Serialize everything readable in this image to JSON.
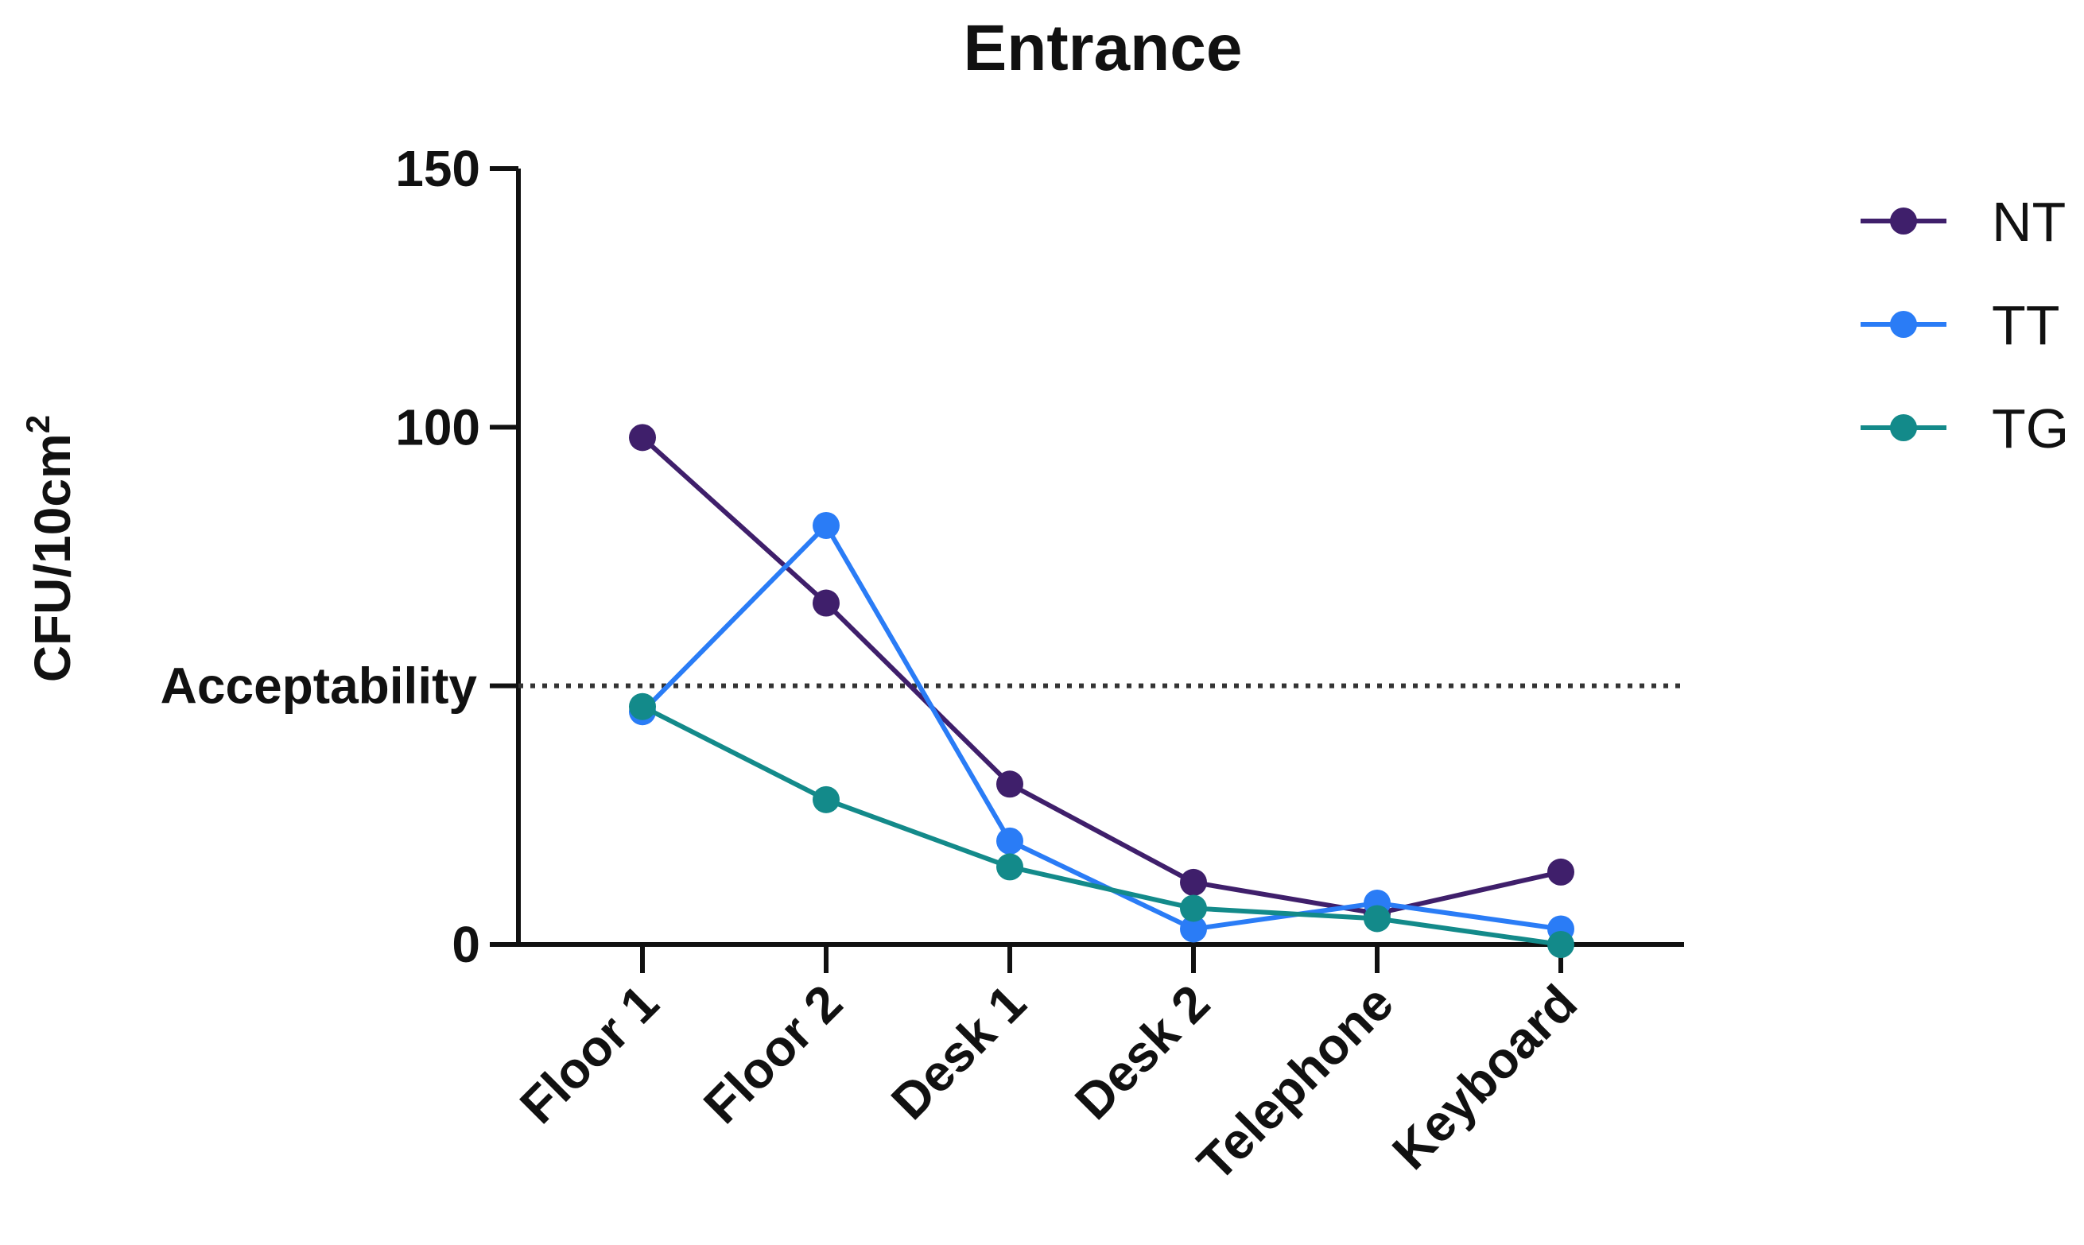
{
  "chart_data": {
    "type": "line",
    "title": "Entrance",
    "xlabel": "",
    "ylabel": "CFU/10cm",
    "ylabel_superscript": "2",
    "categories": [
      "Floor 1",
      "Floor 2",
      "Desk 1",
      "Desk 2",
      "Telephone",
      "Keyboard"
    ],
    "ylim": [
      0,
      150
    ],
    "yticks": [
      0,
      100,
      150
    ],
    "reference_line": {
      "value": 50,
      "label": "Acceptability",
      "style": "dotted"
    },
    "grid": false,
    "legend_position": "top-right",
    "series": [
      {
        "name": "NT",
        "color": "#3f1f6b",
        "values": [
          98,
          66,
          31,
          12,
          6,
          14
        ]
      },
      {
        "name": "TT",
        "color": "#2a7cf6",
        "values": [
          45,
          81,
          20,
          3,
          8,
          3
        ]
      },
      {
        "name": "TG",
        "color": "#138a8a",
        "values": [
          46,
          28,
          15,
          7,
          5,
          0
        ]
      }
    ]
  }
}
